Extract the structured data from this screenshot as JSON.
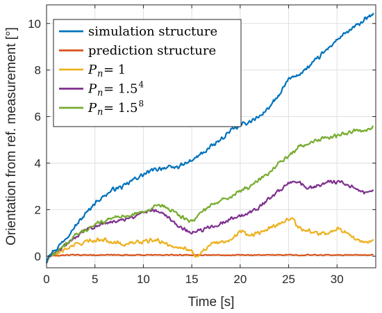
{
  "chart_data": {
    "type": "line",
    "xlabel": "Time [s]",
    "ylabel": "Orientation from ref. measurement [°]",
    "xlim": [
      0,
      34
    ],
    "ylim": [
      -0.5,
      10.8
    ],
    "xticks": [
      0,
      5,
      10,
      15,
      20,
      25,
      30
    ],
    "yticks": [
      0,
      2,
      4,
      6,
      8,
      10
    ],
    "x_tick_labels": [
      "0",
      "5",
      "10",
      "15",
      "20",
      "25",
      "30"
    ],
    "y_tick_labels": [
      "0",
      "2",
      "4",
      "6",
      "8",
      "10"
    ],
    "grid": true,
    "legend_position": "top-left",
    "series": [
      {
        "name": "simulation structure",
        "legend": {
          "main": "simulation structure",
          "sub": "",
          "rest": "",
          "sup": "",
          "math": false
        },
        "color": "#0072BD",
        "noise": 0.11,
        "x": [
          0,
          0.3,
          1,
          2,
          3,
          4,
          5,
          6,
          7,
          8,
          9,
          10,
          11,
          12,
          13,
          14,
          15,
          16,
          17,
          18,
          19,
          20,
          21,
          22,
          23,
          24,
          25,
          26,
          27,
          28,
          29,
          30,
          31,
          32,
          33,
          33.8
        ],
        "y": [
          -0.3,
          0.1,
          0.3,
          0.8,
          1.3,
          1.8,
          2.3,
          2.6,
          2.9,
          3.0,
          3.3,
          3.5,
          3.7,
          3.8,
          3.8,
          3.9,
          4.1,
          4.4,
          4.7,
          5.0,
          5.4,
          5.6,
          5.8,
          6.0,
          6.4,
          6.9,
          7.6,
          7.8,
          8.1,
          8.5,
          8.9,
          9.3,
          9.6,
          9.9,
          10.2,
          10.4
        ]
      },
      {
        "name": "prediction structure",
        "legend": {
          "main": "prediction structure",
          "sub": "",
          "rest": "",
          "sup": "",
          "math": false
        },
        "color": "#D95319",
        "noise": 0.025,
        "x": [
          0,
          0.3,
          2,
          10,
          20,
          30,
          33.8
        ],
        "y": [
          -0.3,
          0.0,
          0.05,
          0.05,
          0.05,
          0.05,
          0.05
        ]
      },
      {
        "name": "P_n = 1",
        "legend": {
          "main": "P",
          "sub": "n",
          "rest": " = 1",
          "sup": "",
          "math": true
        },
        "color": "#EDB120",
        "noise": 0.1,
        "x": [
          0,
          0.3,
          1,
          2,
          3,
          4,
          5,
          6,
          7,
          8,
          9,
          10,
          11,
          12,
          13,
          14,
          15,
          15.5,
          16,
          17,
          18,
          19,
          20,
          21,
          22,
          23,
          24,
          25,
          25.5,
          26,
          27,
          28,
          29,
          30,
          31,
          32,
          33,
          33.8
        ],
        "y": [
          -0.3,
          0.0,
          0.1,
          0.3,
          0.5,
          0.6,
          0.7,
          0.7,
          0.6,
          0.5,
          0.6,
          0.6,
          0.7,
          0.6,
          0.4,
          0.4,
          0.2,
          -0.05,
          0.2,
          0.5,
          0.6,
          0.7,
          1.1,
          0.9,
          1.0,
          1.2,
          1.4,
          1.6,
          1.6,
          1.2,
          1.1,
          1.0,
          1.0,
          1.2,
          1.0,
          0.7,
          0.6,
          0.7
        ]
      },
      {
        "name": "P_n = 1.5^4",
        "legend": {
          "main": "P",
          "sub": "n",
          "rest": " = 1.5",
          "sup": "4",
          "math": true
        },
        "color": "#7E2F8E",
        "noise": 0.1,
        "x": [
          0,
          0.3,
          1,
          2,
          3,
          4,
          5,
          6,
          7,
          8,
          9,
          10,
          11,
          12,
          13,
          14,
          15,
          16,
          17,
          18,
          19,
          20,
          21,
          22,
          23,
          24,
          25,
          26,
          27,
          28,
          29,
          30,
          31,
          32,
          33,
          33.8
        ],
        "y": [
          -0.3,
          0.0,
          0.2,
          0.5,
          0.8,
          1.1,
          1.3,
          1.4,
          1.5,
          1.6,
          1.7,
          1.9,
          2.0,
          1.9,
          1.5,
          1.2,
          1.0,
          1.1,
          1.3,
          1.4,
          1.6,
          1.7,
          1.9,
          2.1,
          2.5,
          2.8,
          3.1,
          3.2,
          2.9,
          3.0,
          3.2,
          3.2,
          3.1,
          2.9,
          2.7,
          2.8
        ]
      },
      {
        "name": "P_n = 1.5^8",
        "legend": {
          "main": "P",
          "sub": "n",
          "rest": " = 1.5",
          "sup": "8",
          "math": true
        },
        "color": "#77AC30",
        "noise": 0.1,
        "x": [
          0,
          0.3,
          1,
          2,
          3,
          4,
          5,
          6,
          7,
          8,
          9,
          10,
          11,
          12,
          13,
          14,
          15,
          16,
          17,
          18,
          19,
          20,
          21,
          22,
          23,
          24,
          25,
          26,
          27,
          28,
          29,
          30,
          31,
          32,
          33,
          33.8
        ],
        "y": [
          -0.3,
          0.0,
          0.2,
          0.5,
          0.9,
          1.1,
          1.4,
          1.5,
          1.7,
          1.7,
          1.8,
          1.9,
          2.1,
          2.2,
          1.9,
          1.7,
          1.5,
          1.9,
          2.2,
          2.4,
          2.5,
          2.8,
          3.0,
          3.3,
          3.6,
          4.0,
          4.3,
          4.7,
          4.8,
          5.0,
          5.1,
          5.2,
          5.3,
          5.4,
          5.4,
          5.6
        ]
      }
    ]
  }
}
